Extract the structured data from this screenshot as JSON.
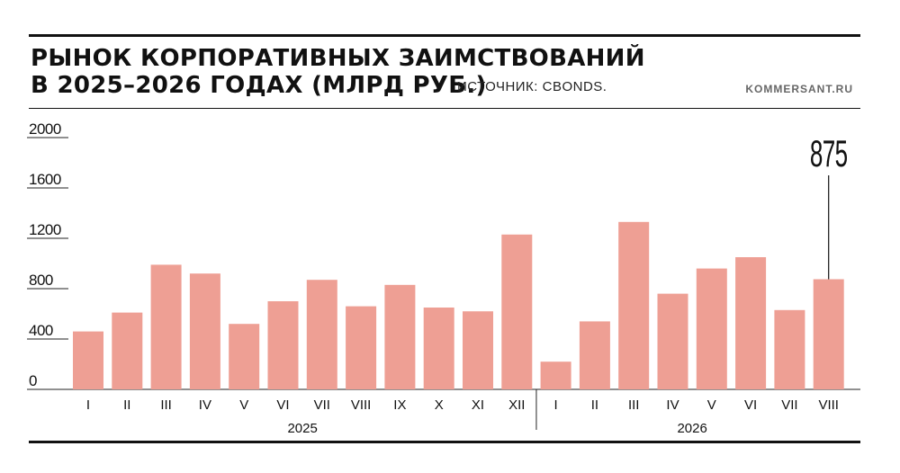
{
  "header": {
    "title_line1": "РЫНОК КОРПОРАТИВНЫХ ЗАИМСТВОВАНИЙ",
    "title_line2": "В 2025–2026 ГОДАХ (МЛРД РУБ.)",
    "source": "ИСТОЧНИК: CBONDS.",
    "brand": "KOMMERSANT.RU"
  },
  "colors": {
    "bar": "#ee9f94",
    "text": "#111111",
    "grid": "#222222"
  },
  "chart_data": {
    "type": "bar",
    "title": "РЫНОК КОРПОРАТИВНЫХ ЗАИМСТВОВАНИЙ В 2025–2026 ГОДАХ (МЛРД РУБ.)",
    "xlabel": "",
    "ylabel": "",
    "ylim": [
      0,
      2000
    ],
    "yticks": [
      "0",
      "400",
      "800",
      "1200",
      "1600",
      "2000"
    ],
    "categories": [
      "I",
      "II",
      "III",
      "IV",
      "V",
      "VI",
      "VII",
      "VIII",
      "IX",
      "X",
      "XI",
      "XII",
      "I",
      "II",
      "III",
      "IV",
      "V",
      "VI",
      "VII",
      "VIII"
    ],
    "values": [
      460,
      610,
      990,
      920,
      520,
      700,
      870,
      660,
      830,
      650,
      620,
      1230,
      220,
      540,
      1330,
      760,
      960,
      1050,
      630,
      875
    ],
    "groups": [
      {
        "label": "2025",
        "count": 12
      },
      {
        "label": "2026",
        "count": 8
      }
    ],
    "annotation": {
      "text": "875",
      "index": 19
    },
    "grid": true
  }
}
